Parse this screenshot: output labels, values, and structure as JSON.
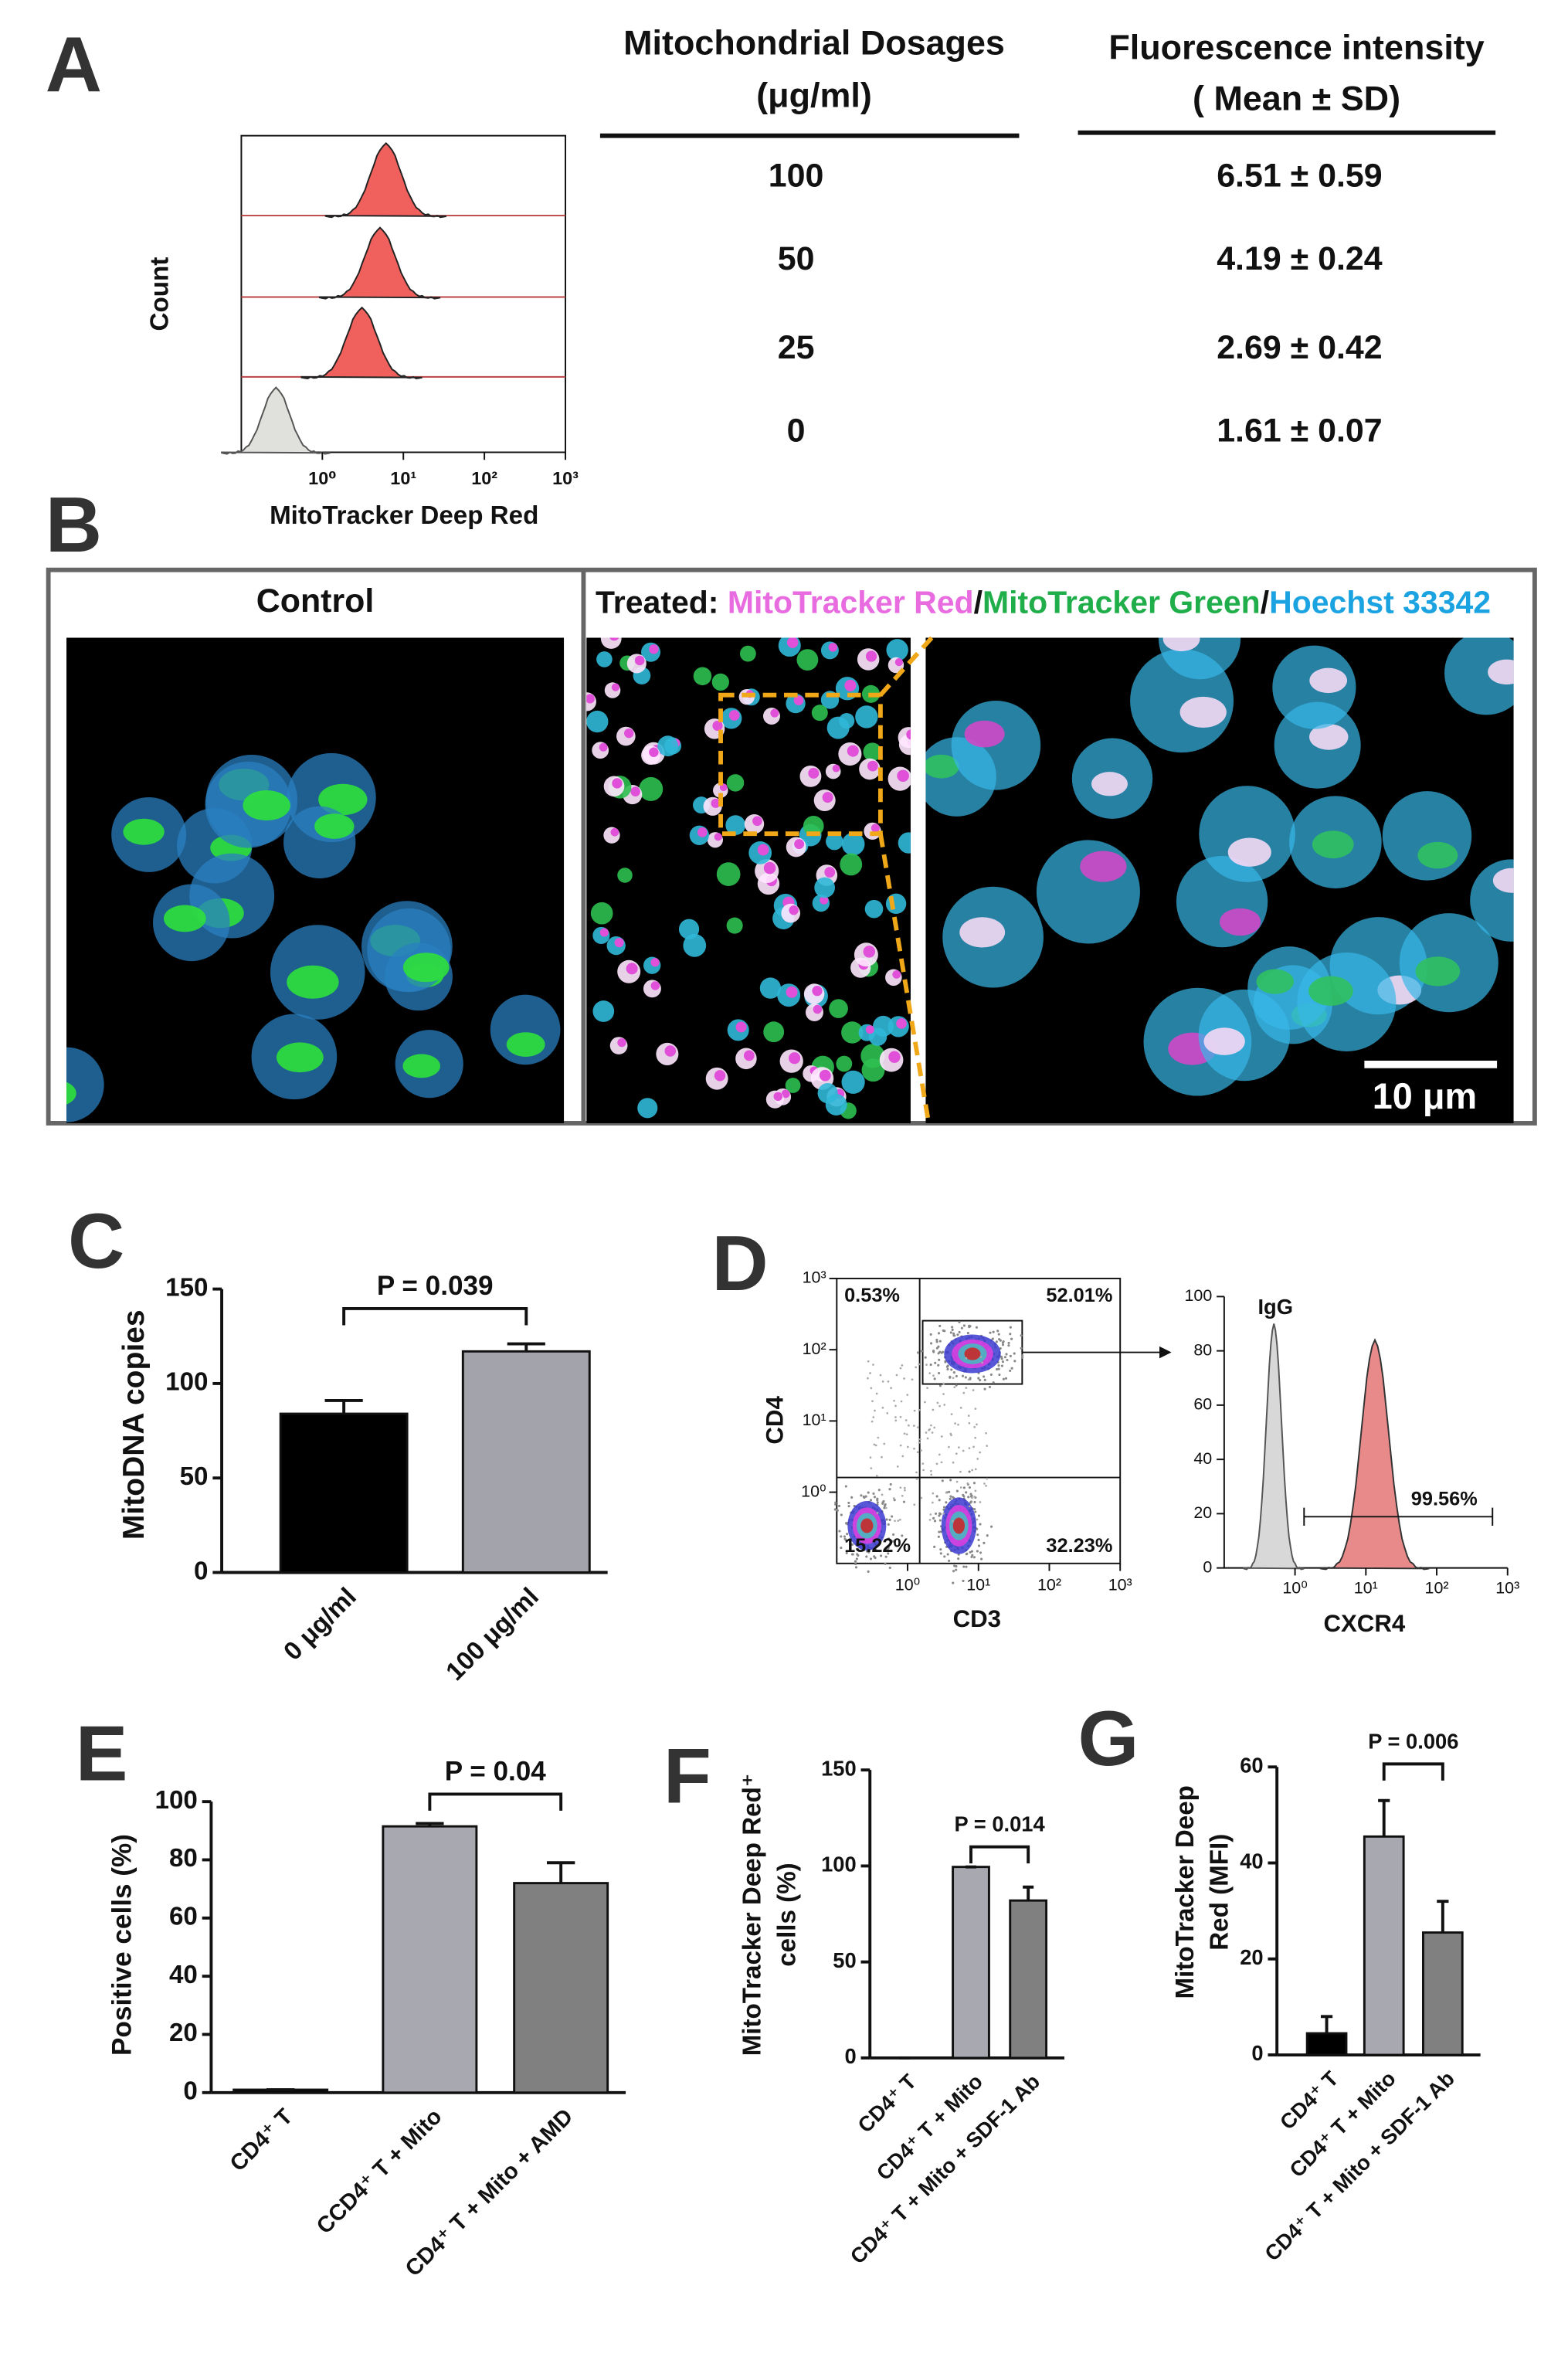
{
  "panel_labels": [
    "A",
    "B",
    "C",
    "D",
    "E",
    "F",
    "G"
  ],
  "flow_a": {
    "ylabel": "Count",
    "xlabel": "MitoTracker Deep Red",
    "xscale": "log",
    "xlim": [
      0.1,
      1000
    ],
    "xticks": [
      {
        "value": 1,
        "label": "10⁰"
      },
      {
        "value": 10,
        "label": "10¹"
      },
      {
        "value": 100,
        "label": "10²"
      },
      {
        "value": 1000,
        "label": "10³"
      }
    ]
  },
  "table": {
    "headers": [
      [
        "Mitochondrial Dosages",
        "(μg/ml)"
      ],
      [
        "Fluorescence intensity",
        "( Mean ± SD)"
      ]
    ],
    "rows": [
      [
        "100",
        "6.51 ± 0.59"
      ],
      [
        "50",
        "4.19 ± 0.24"
      ],
      [
        "25",
        "2.69 ± 0.42"
      ],
      [
        "0",
        "1.61 ± 0.07"
      ]
    ]
  },
  "microscopy": {
    "control_title": "Control",
    "treated": [
      "Treated: ",
      "MitoTracker Red",
      "/",
      "MitoTracker Green",
      "/",
      "Hoechst 33342"
    ],
    "scale_bar": "10 μm"
  },
  "flow_d": {
    "scatter": {
      "xlabel": "CD3",
      "ylabel": "CD4",
      "xscale": "log",
      "yscale": "log",
      "xlim": [
        0.1,
        1000
      ],
      "ylim": [
        0.1,
        1000
      ],
      "xticks": [
        {
          "value": 1,
          "label": "10⁰"
        },
        {
          "value": 10,
          "label": "10¹"
        },
        {
          "value": 100,
          "label": "10²"
        },
        {
          "value": 1000,
          "label": "10³"
        }
      ],
      "yticks": [
        {
          "value": 1,
          "label": "10⁰"
        },
        {
          "value": 10,
          "label": "10¹"
        },
        {
          "value": 100,
          "label": "10²"
        },
        {
          "value": 1000,
          "label": "10³"
        }
      ],
      "quadrants": [
        "0.53%",
        "52.01%",
        "15.22%",
        "32.23%"
      ]
    },
    "histogram": {
      "xlabel": "CXCR4",
      "xscale": "log",
      "xlim": [
        0.1,
        1000
      ],
      "xticks": [
        {
          "value": 1,
          "label": "10⁰"
        },
        {
          "value": 10,
          "label": "10¹"
        },
        {
          "value": 100,
          "label": "10²"
        },
        {
          "value": 1000,
          "label": "10³"
        }
      ],
      "ylim": [
        0,
        100
      ],
      "yticks": [
        0,
        20,
        40,
        60,
        80,
        100
      ],
      "control_label": "IgG",
      "gate_label": "99.56%"
    }
  },
  "chart_data": [
    {
      "type": "bar",
      "ylabel": [
        "MitoDNA copies"
      ],
      "categories": [
        "0 μg/ml",
        "100 μg/ml"
      ],
      "values": [
        84,
        117
      ],
      "errors": [
        7,
        4
      ],
      "colors": [
        "#000000",
        "#a3a3ab"
      ],
      "ylim": [
        0,
        150
      ],
      "yticks": [
        0,
        50,
        100,
        150
      ],
      "annotation": "P = 0.039"
    },
    {
      "type": "bar",
      "ylabel": [
        "Positive cells (%)"
      ],
      "categories": [
        "CD4⁺ T",
        "CCD4⁺ T + Mito",
        "CD4⁺ T + Mito + AMD"
      ],
      "values": [
        1,
        91.5,
        72
      ],
      "errors": [
        0,
        1,
        7
      ],
      "colors": [
        "#000000",
        "#a8a8b0",
        "#808080"
      ],
      "ylim": [
        0,
        100
      ],
      "yticks": [
        0,
        20,
        40,
        60,
        80,
        100
      ],
      "annotation": "P = 0.04"
    },
    {
      "type": "bar",
      "ylabel": [
        "MitoTracker Deep Red⁺",
        "cells (%)"
      ],
      "categories": [
        "CD4⁺ T",
        "CD4⁺ T + Mito",
        "CD4⁺ T + Mito + SDF-1 Ab"
      ],
      "values": [
        0,
        99.5,
        82
      ],
      "errors": [
        0,
        0,
        7
      ],
      "colors": [
        "#000000",
        "#a8a8b0",
        "#808080"
      ],
      "ylim": [
        0,
        150
      ],
      "yticks": [
        0,
        50,
        100,
        150
      ],
      "annotation": "P = 0.014"
    },
    {
      "type": "bar",
      "ylabel": [
        "MitoTracker Deep",
        "Red (MFI)"
      ],
      "categories": [
        "CD4⁺ T",
        "CD4⁺ T + Mito",
        "CD4⁺ T + Mito + SDF-1 Ab"
      ],
      "values": [
        4.5,
        45.5,
        25.5
      ],
      "errors": [
        3.5,
        7.5,
        6.5
      ],
      "colors": [
        "#000000",
        "#a8a8b0",
        "#808080"
      ],
      "ylim": [
        0,
        60
      ],
      "yticks": [
        0,
        20,
        40,
        60
      ],
      "annotation": "P = 0.006"
    }
  ]
}
